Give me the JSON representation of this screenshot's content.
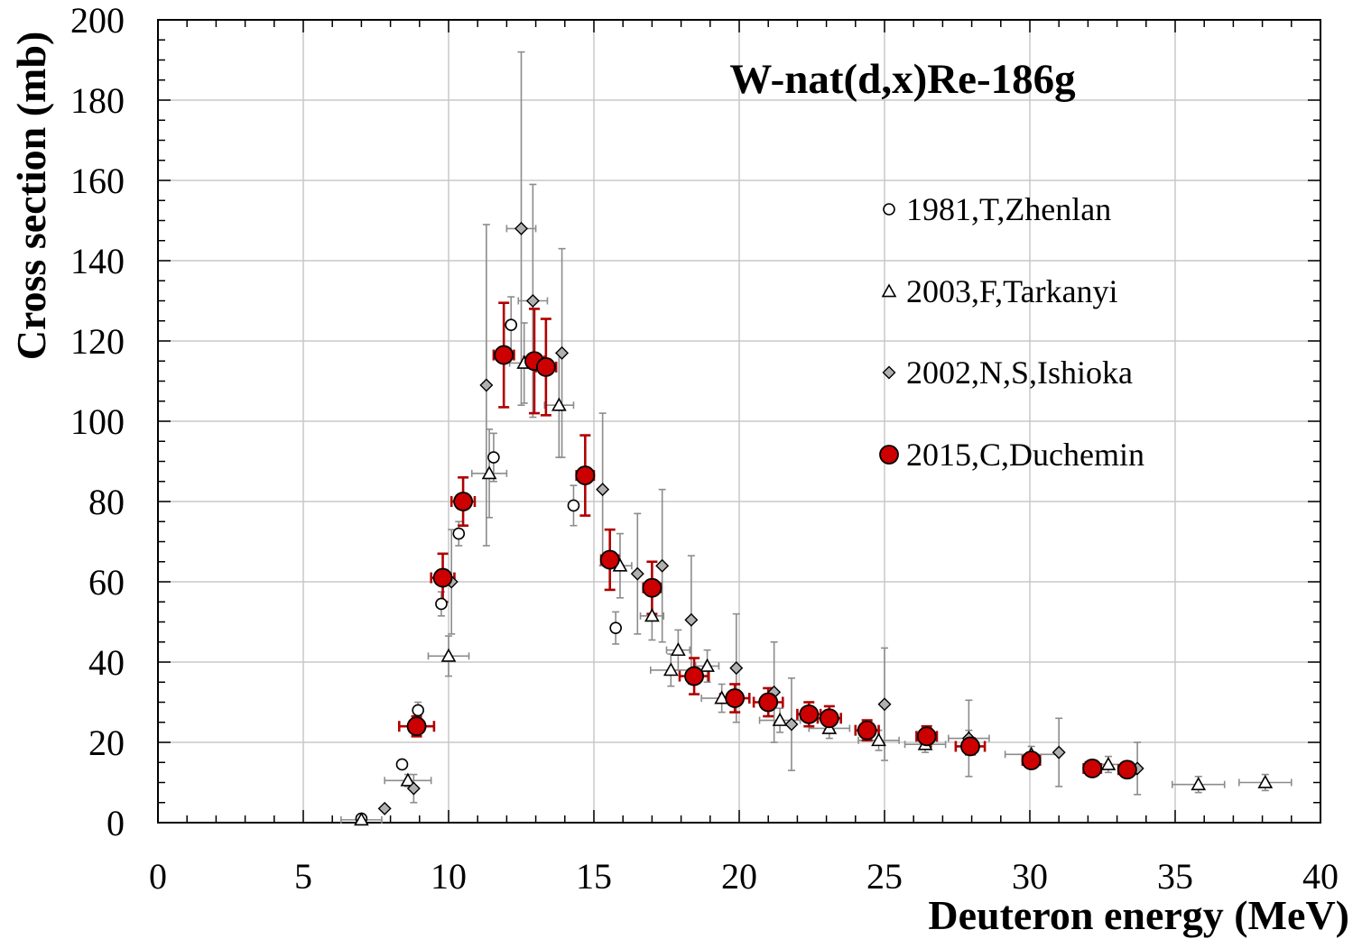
{
  "chart_data": {
    "type": "scatter",
    "title": "W-nat(d,x)Re-186g",
    "xlabel": "Deuteron energy (MeV)",
    "ylabel": "Cross section (mb)",
    "xlim": [
      0,
      40
    ],
    "ylim": [
      0,
      200
    ],
    "xticks": [
      "0",
      "5",
      "10",
      "15",
      "20",
      "25",
      "30",
      "35",
      "40"
    ],
    "yticks": [
      "0",
      "20",
      "40",
      "60",
      "80",
      "100",
      "120",
      "140",
      "160",
      "180",
      "200"
    ],
    "grid": true,
    "legend_position": "right",
    "series": [
      {
        "name": "1981,T,Zhenlan",
        "marker": "circle",
        "color": "#ffffff",
        "stroke": "#000000",
        "points": [
          {
            "x": 7.0,
            "y": 1.0,
            "yerr": 0.3
          },
          {
            "x": 8.4,
            "y": 14.5,
            "yerr": 1
          },
          {
            "x": 8.95,
            "y": 28,
            "yerr": 2
          },
          {
            "x": 9.75,
            "y": 54.5,
            "yerr": 3
          },
          {
            "x": 10.35,
            "y": 72,
            "yerr": 3
          },
          {
            "x": 11.55,
            "y": 91,
            "yerr": 6
          },
          {
            "x": 12.15,
            "y": 124,
            "yerr": 7
          },
          {
            "x": 14.3,
            "y": 79,
            "yerr": 5
          },
          {
            "x": 15.75,
            "y": 48.5,
            "yerr": 4
          }
        ]
      },
      {
        "name": "2003,F,Tarkanyi",
        "marker": "triangle",
        "color": "#ffffff",
        "stroke": "#000000",
        "points": [
          {
            "x": 7.0,
            "y": 0.7,
            "xerr": 0.7,
            "yerr": 0.3
          },
          {
            "x": 8.6,
            "y": 10.5,
            "xerr": 0.8,
            "yerr": 1.5
          },
          {
            "x": 10.0,
            "y": 41.5,
            "xerr": 0.7,
            "yerr": 5
          },
          {
            "x": 11.4,
            "y": 87,
            "xerr": 0.6,
            "yerr": 11
          },
          {
            "x": 12.6,
            "y": 114.5,
            "xerr": 0.5,
            "yerr": 10
          },
          {
            "x": 13.8,
            "y": 104,
            "xerr": 0.5,
            "yerr": 13
          },
          {
            "x": 15.9,
            "y": 64,
            "xerr": 0.4,
            "yerr": 8
          },
          {
            "x": 17.0,
            "y": 51.5,
            "xerr": 0.4,
            "yerr": 6
          },
          {
            "x": 17.9,
            "y": 43,
            "xerr": 0.4,
            "yerr": 5
          },
          {
            "x": 17.65,
            "y": 38,
            "xerr": 0.7,
            "yerr": 4
          },
          {
            "x": 18.9,
            "y": 39,
            "xerr": 0.4,
            "yerr": 4
          },
          {
            "x": 19.4,
            "y": 31,
            "xerr": 0.7,
            "yerr": 3.5
          },
          {
            "x": 21.4,
            "y": 25.5,
            "xerr": 0.7,
            "yerr": 3
          },
          {
            "x": 23.1,
            "y": 23.5,
            "xerr": 0.7,
            "yerr": 2.5
          },
          {
            "x": 24.8,
            "y": 20.5,
            "xerr": 0.7,
            "yerr": 2.5
          },
          {
            "x": 26.4,
            "y": 19.5,
            "xerr": 0.7,
            "yerr": 2
          },
          {
            "x": 27.9,
            "y": 21,
            "xerr": 0.7,
            "yerr": 2
          },
          {
            "x": 30.05,
            "y": 17,
            "xerr": 0.9,
            "yerr": 2
          },
          {
            "x": 32.7,
            "y": 14.5,
            "xerr": 0.8,
            "yerr": 2
          },
          {
            "x": 35.8,
            "y": 9.5,
            "xerr": 0.9,
            "yerr": 2
          },
          {
            "x": 38.1,
            "y": 10,
            "xerr": 0.9,
            "yerr": 2
          }
        ]
      },
      {
        "name": "2002,N,S,Ishioka",
        "marker": "diamond",
        "color": "#b0b0b0",
        "stroke": "#000000",
        "points": [
          {
            "x": 7.8,
            "y": 3.5,
            "yerr": 0.5
          },
          {
            "x": 8.8,
            "y": 8.5,
            "yerr": 3.5
          },
          {
            "x": 10.1,
            "y": 60,
            "yerr": 13
          },
          {
            "x": 11.3,
            "y": 109,
            "yerr": 40
          },
          {
            "x": 12.5,
            "y": 148,
            "xerr": 0.5,
            "yerr": 44
          },
          {
            "x": 12.9,
            "y": 130,
            "xerr": 0.5,
            "yerr": 29
          },
          {
            "x": 13.9,
            "y": 117,
            "yerr": 26
          },
          {
            "x": 15.3,
            "y": 83,
            "yerr": 19
          },
          {
            "x": 16.5,
            "y": 62,
            "yerr": 15
          },
          {
            "x": 17.35,
            "y": 64,
            "yerr": 19
          },
          {
            "x": 18.35,
            "y": 50.5,
            "yerr": 16
          },
          {
            "x": 19.9,
            "y": 38.5,
            "yerr": 13.5
          },
          {
            "x": 21.2,
            "y": 32.5,
            "yerr": 12.5
          },
          {
            "x": 21.8,
            "y": 24.5,
            "yerr": 11.5
          },
          {
            "x": 25.0,
            "y": 29.5,
            "yerr": 14
          },
          {
            "x": 27.9,
            "y": 21,
            "yerr": 9.5
          },
          {
            "x": 31.0,
            "y": 17.5,
            "yerr": 8.5
          },
          {
            "x": 33.7,
            "y": 13.5,
            "yerr": 6.5
          }
        ]
      },
      {
        "name": "2015,C,Duchemin",
        "marker": "circle-filled",
        "color": "#cc0000",
        "stroke": "#000000",
        "points": [
          {
            "x": 8.9,
            "y": 24,
            "xerr": 0.6,
            "yerr": 2.5
          },
          {
            "x": 9.8,
            "y": 61,
            "xerr": 0.4,
            "yerr": 6
          },
          {
            "x": 10.5,
            "y": 80,
            "xerr": 0.4,
            "yerr": 6
          },
          {
            "x": 11.9,
            "y": 116.5,
            "xerr": 0.35,
            "yerr": 13
          },
          {
            "x": 12.95,
            "y": 115,
            "xerr": 0.35,
            "yerr": 13
          },
          {
            "x": 13.35,
            "y": 113.5,
            "xerr": 0.35,
            "yerr": 12
          },
          {
            "x": 14.7,
            "y": 86.5,
            "xerr": 0.3,
            "yerr": 10
          },
          {
            "x": 15.55,
            "y": 65.5,
            "xerr": 0.3,
            "yerr": 7.5
          },
          {
            "x": 17.0,
            "y": 58.5,
            "xerr": 0.3,
            "yerr": 6.5
          },
          {
            "x": 18.45,
            "y": 36.5,
            "xerr": 0.5,
            "yerr": 4.5
          },
          {
            "x": 19.85,
            "y": 31,
            "xerr": 0.5,
            "yerr": 3.5
          },
          {
            "x": 21.0,
            "y": 30,
            "xerr": 0.5,
            "yerr": 3.5
          },
          {
            "x": 22.4,
            "y": 27,
            "xerr": 0.4,
            "yerr": 3
          },
          {
            "x": 23.1,
            "y": 26,
            "xerr": 0.4,
            "yerr": 3
          },
          {
            "x": 24.4,
            "y": 23,
            "xerr": 0.4,
            "yerr": 2.5
          },
          {
            "x": 26.45,
            "y": 21.5,
            "xerr": 0.35,
            "yerr": 2.5
          },
          {
            "x": 27.95,
            "y": 19,
            "xerr": 0.5,
            "yerr": 2
          },
          {
            "x": 30.05,
            "y": 15.5,
            "xerr": 0.3,
            "yerr": 1.5
          },
          {
            "x": 32.15,
            "y": 13.5,
            "xerr": 0.3,
            "yerr": 1.5
          },
          {
            "x": 33.35,
            "y": 13.2,
            "xerr": 0.3,
            "yerr": 1.5
          }
        ]
      }
    ]
  }
}
